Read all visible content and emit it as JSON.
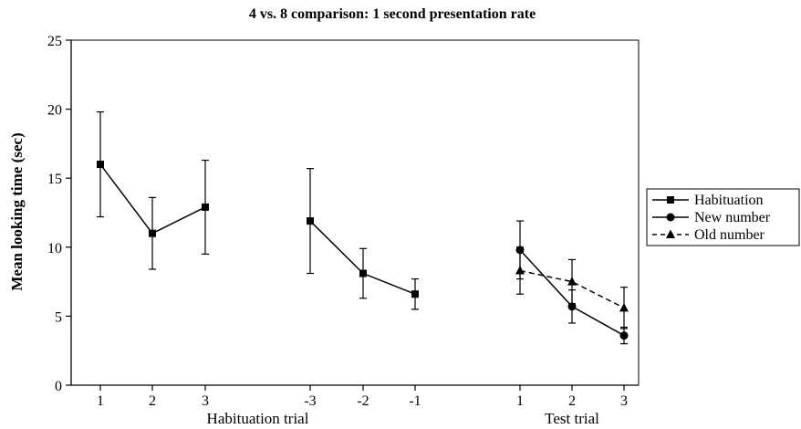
{
  "chart_data": {
    "type": "line",
    "title": "4 vs. 8 comparison: 1 second presentation rate",
    "ylabel": "Mean looking time (sec)",
    "ylim": [
      0,
      25
    ],
    "yticks": [
      0,
      5,
      10,
      15,
      20,
      25
    ],
    "grid": false,
    "legend_position": "right",
    "x_groups": [
      {
        "label": "Habituation trial",
        "ticks": [
          "1",
          "2",
          "3",
          "-3",
          "-2",
          "-1"
        ]
      },
      {
        "label": "Test trial",
        "ticks": [
          "1",
          "2",
          "3"
        ]
      }
    ],
    "series": [
      {
        "name": "Habituation",
        "marker": "square",
        "dash": false,
        "segments": [
          {
            "x": [
              "1",
              "2",
              "3"
            ],
            "values": [
              16.0,
              11.0,
              12.9
            ],
            "error": [
              3.8,
              2.6,
              3.4
            ]
          },
          {
            "x": [
              "-3",
              "-2",
              "-1"
            ],
            "values": [
              11.9,
              8.1,
              6.6
            ],
            "error": [
              3.8,
              1.8,
              1.1
            ]
          }
        ]
      },
      {
        "name": "New number",
        "marker": "circle",
        "dash": false,
        "segments": [
          {
            "x": [
              "1",
              "2",
              "3"
            ],
            "values": [
              9.8,
              5.7,
              3.6
            ],
            "error": [
              2.1,
              1.2,
              0.6
            ]
          }
        ]
      },
      {
        "name": "Old number",
        "marker": "triangle",
        "dash": true,
        "segments": [
          {
            "x": [
              "1",
              "2",
              "3"
            ],
            "values": [
              8.3,
              7.5,
              5.6
            ],
            "error": [
              1.7,
              1.6,
              1.5
            ]
          }
        ]
      }
    ]
  }
}
